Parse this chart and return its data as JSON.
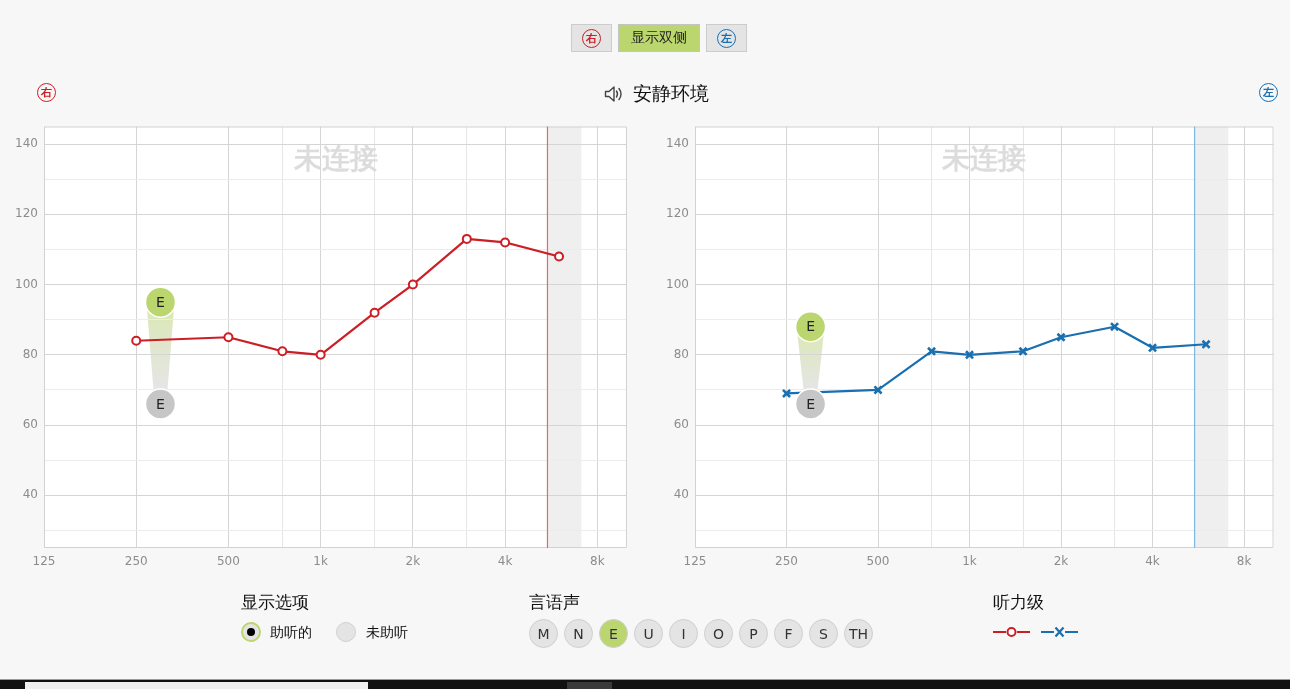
{
  "chart_data": [
    {
      "type": "other",
      "title": "安静环境",
      "annotations": [
        "右",
        "显示双侧",
        "左"
      ]
    },
    {
      "type": "line",
      "title": "右",
      "annotations": [
        "未连接",
        {
          "text": "E",
          "x": 300,
          "y": 66
        }
      ],
      "x": [
        250,
        500,
        750,
        1000,
        1500,
        2000,
        3000,
        4000,
        6000
      ],
      "series": [
        {
          "color": "#cc1e25",
          "values": [
            84,
            85,
            81,
            80,
            92,
            100,
            113,
            112,
            108
          ]
        },
        {
          "type": "scatter",
          "marker": "circle",
          "color": "#bcd66f",
          "x": [
            300
          ],
          "values": [
            95
          ],
          "value_labels": [
            "E"
          ]
        }
      ],
      "log": "x",
      "xlim": [
        125,
        10000
      ],
      "xticks": [
        125,
        250,
        500,
        {
          "value": 750,
          "label": null
        },
        {
          "value": 1000,
          "label": "1k"
        },
        {
          "value": 1500,
          "label": null
        },
        {
          "value": 2000,
          "label": "2k"
        },
        {
          "value": 3000,
          "label": null
        },
        {
          "value": 4000,
          "label": "4k"
        },
        {
          "value": 8000,
          "label": "8k"
        }
      ],
      "ylim": [
        25,
        145
      ],
      "yticks": [
        {
          "value": 30,
          "label": null
        },
        40,
        {
          "value": 50,
          "label": null
        },
        60,
        {
          "value": 70,
          "label": null
        },
        80,
        {
          "value": 90,
          "label": null
        },
        100,
        {
          "value": 110,
          "label": null
        },
        120,
        {
          "value": 130,
          "label": null
        },
        140
      ],
      "grid": true,
      "marker": "circle",
      "line_style": "solid",
      "ref_lines": [
        {
          "axis": "x",
          "value": 5500,
          "color": "#e8676c"
        }
      ],
      "bands": [
        {
          "axis": "x",
          "from": 5500,
          "to": 7100,
          "color": "#efefef"
        }
      ]
    },
    {
      "type": "line",
      "title": "左",
      "annotations": [
        "未连接",
        {
          "text": "E",
          "x": 300,
          "y": 66
        }
      ],
      "x": [
        250,
        500,
        750,
        1000,
        1500,
        2000,
        3000,
        4000,
        6000
      ],
      "series": [
        {
          "color": "#1a6fb0",
          "values": [
            69,
            70,
            81,
            80,
            81,
            85,
            88,
            82,
            83
          ]
        },
        {
          "type": "scatter",
          "marker": "circle",
          "color": "#bcd66f",
          "x": [
            300
          ],
          "values": [
            88
          ],
          "value_labels": [
            "E"
          ]
        }
      ],
      "log": "x",
      "xlim": [
        125,
        10000
      ],
      "xticks": [
        125,
        250,
        500,
        {
          "value": 750,
          "label": null
        },
        {
          "value": 1000,
          "label": "1k"
        },
        {
          "value": 1500,
          "label": null
        },
        {
          "value": 2000,
          "label": "2k"
        },
        {
          "value": 3000,
          "label": null
        },
        {
          "value": 4000,
          "label": "4k"
        },
        {
          "value": 8000,
          "label": "8k"
        }
      ],
      "ylim": [
        25,
        145
      ],
      "yticks": [
        {
          "value": 30,
          "label": null
        },
        40,
        {
          "value": 50,
          "label": null
        },
        60,
        {
          "value": 70,
          "label": null
        },
        80,
        {
          "value": 90,
          "label": null
        },
        100,
        {
          "value": 110,
          "label": null
        },
        120,
        {
          "value": 130,
          "label": null
        },
        140
      ],
      "grid": true,
      "marker": "cross",
      "line_style": "solid",
      "ref_lines": [
        {
          "axis": "x",
          "value": 5500,
          "color": "#7db9dc"
        }
      ],
      "bands": [
        {
          "axis": "x",
          "from": 5500,
          "to": 7100,
          "color": "#efefef"
        }
      ]
    },
    {
      "type": "other",
      "annotations": [
        "显示选项",
        "助听的",
        "未助听",
        "言语声",
        "M",
        "N",
        "E",
        "U",
        "I",
        "O",
        "P",
        "F",
        "S",
        "TH",
        "听力级"
      ]
    }
  ]
}
